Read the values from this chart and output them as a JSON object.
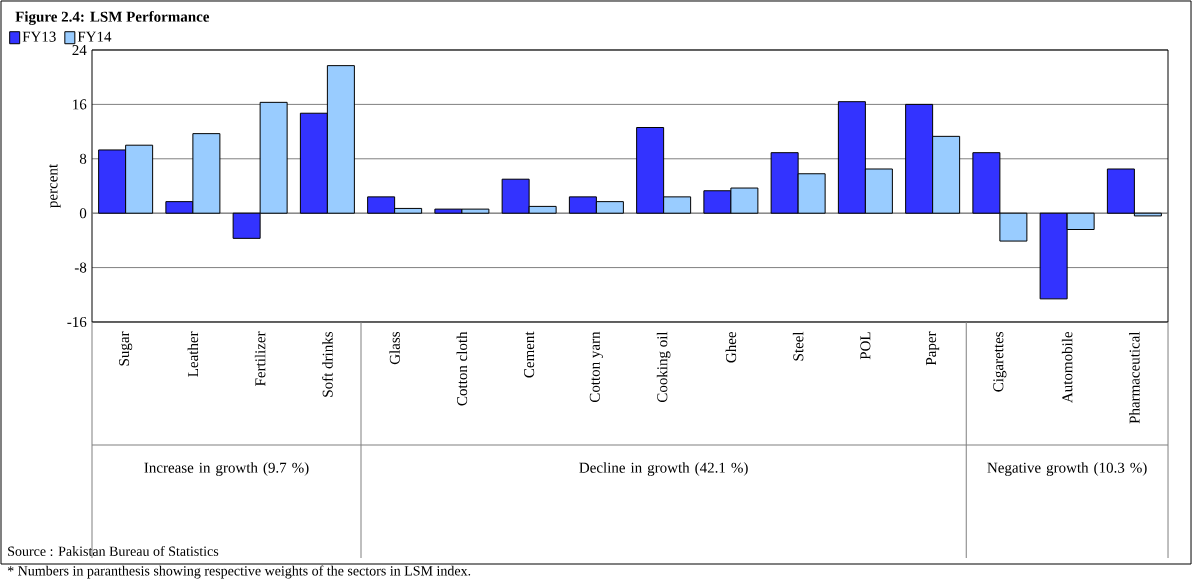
{
  "chart_data": {
    "type": "bar",
    "title": "Figure 2.4: LSM Performance",
    "ylabel": "percent",
    "categories": [
      "Sugar",
      "Leather",
      "Fertilizer",
      "Soft drinks",
      "Glass",
      "Cotton cloth",
      "Cement",
      "Cotton yarn",
      "Cooking oil",
      "Ghee",
      "Steel",
      "POL",
      "Paper",
      "Cigarettes",
      "Automobile",
      "Pharmaceutical"
    ],
    "series": [
      {
        "name": "FY13",
        "color": "#3333ff",
        "values": [
          9.3,
          1.7,
          -3.7,
          14.7,
          2.4,
          0.6,
          5.0,
          2.4,
          12.6,
          3.3,
          8.9,
          16.4,
          16.0,
          8.9,
          -12.6,
          6.5
        ]
      },
      {
        "name": "FY14",
        "color": "#99ccff",
        "values": [
          10.0,
          11.7,
          16.3,
          21.7,
          0.7,
          0.6,
          1.0,
          1.7,
          2.4,
          3.7,
          5.8,
          6.5,
          11.3,
          -4.1,
          -2.4,
          -0.4
        ]
      }
    ],
    "ylim": [
      -16,
      24
    ],
    "yticks": [
      -16,
      -8,
      0,
      8,
      16,
      24
    ],
    "grid": "y",
    "legend": "top left",
    "annotations": [
      "Increase in growth (9.7 %)",
      "Decline in growth (42.1 %)",
      "Negative growth (10.3 %)",
      "Source : Pakistan Bureau of Statistics",
      "* Numbers in paranthesis showing respective weights of the sectors in LSM index."
    ]
  }
}
